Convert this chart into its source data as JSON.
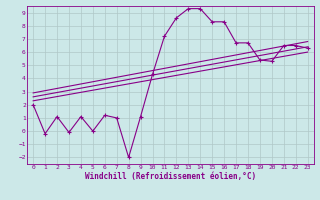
{
  "xlabel": "Windchill (Refroidissement éolien,°C)",
  "bg_color": "#cce8e8",
  "grid_color": "#b0c8c8",
  "line_color": "#880088",
  "xlim": [
    -0.5,
    23.5
  ],
  "ylim": [
    -2.5,
    9.5
  ],
  "xticks": [
    0,
    1,
    2,
    3,
    4,
    5,
    6,
    7,
    8,
    9,
    10,
    11,
    12,
    13,
    14,
    15,
    16,
    17,
    18,
    19,
    20,
    21,
    22,
    23
  ],
  "yticks": [
    -2,
    -1,
    0,
    1,
    2,
    3,
    4,
    5,
    6,
    7,
    8,
    9
  ],
  "zigzag_x": [
    0,
    1,
    2,
    3,
    4,
    5,
    6,
    7,
    8,
    9,
    10,
    11,
    12,
    13,
    14,
    15,
    16,
    17,
    18,
    19,
    20,
    21,
    22,
    23
  ],
  "zigzag_y": [
    2.0,
    -0.2,
    1.1,
    -0.1,
    1.1,
    0.0,
    1.2,
    1.0,
    -2.0,
    1.1,
    4.3,
    7.2,
    8.6,
    9.3,
    9.3,
    8.3,
    8.3,
    6.7,
    6.7,
    5.4,
    5.3,
    6.5,
    6.5,
    6.3
  ],
  "line1_x": [
    0,
    23
  ],
  "line1_y": [
    2.3,
    6.0
  ],
  "line2_x": [
    0,
    23
  ],
  "line2_y": [
    2.6,
    6.4
  ],
  "line3_x": [
    0,
    23
  ],
  "line3_y": [
    2.9,
    6.8
  ]
}
